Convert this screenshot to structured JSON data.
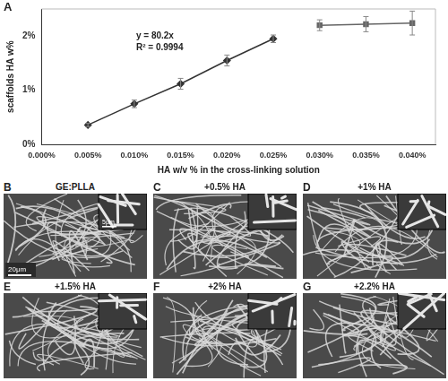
{
  "chart_data": {
    "type": "line",
    "panel_label": "A",
    "x_label": "HA w/v % in the cross-linking solution",
    "y_label": "scaffolds HA w%",
    "annotations": [
      "y = 80.2x",
      "R² = 0.9994"
    ],
    "x": [
      0.005,
      0.01,
      0.015,
      0.02,
      0.025,
      0.03,
      0.035,
      0.04
    ],
    "series": [
      {
        "values": [
          0.36,
          0.75,
          1.12,
          1.55,
          1.95,
          null,
          null,
          null
        ],
        "errors": [
          0.03,
          0.07,
          0.1,
          0.1,
          0.07,
          null,
          null,
          null
        ],
        "color": "#333333",
        "marker": "diamond",
        "line_style": "solid"
      },
      {
        "values": [
          null,
          null,
          null,
          null,
          null,
          2.2,
          2.22,
          2.24
        ],
        "errors": [
          null,
          null,
          null,
          null,
          null,
          0.1,
          0.14,
          0.22
        ],
        "color": "#666666",
        "marker": "square",
        "line_style": "solid"
      }
    ],
    "xlim": [
      0,
      0.0425
    ],
    "xticks": [
      {
        "value": 0,
        "label": "0.000%"
      },
      {
        "value": 0.005,
        "label": "0.005%"
      },
      {
        "value": 0.01,
        "label": "0.010%"
      },
      {
        "value": 0.015,
        "label": "0.015%"
      },
      {
        "value": 0.02,
        "label": "0.020%"
      },
      {
        "value": 0.025,
        "label": "0.025%"
      },
      {
        "value": 0.03,
        "label": "0.030%"
      },
      {
        "value": 0.035,
        "label": "0.035%"
      },
      {
        "value": 0.04,
        "label": "0.040%"
      }
    ],
    "ylim": [
      0,
      2.5
    ],
    "yticks": [
      {
        "value": 0,
        "label": "0%"
      },
      {
        "value": 1,
        "label": "1%"
      },
      {
        "value": 2,
        "label": "2%"
      }
    ],
    "grid": false
  },
  "panels": [
    {
      "label": "B",
      "title": "GE:PLLA",
      "scale_bar": "20μm",
      "inset_scale_bar": "5μm"
    },
    {
      "label": "C",
      "title": "+0.5% HA"
    },
    {
      "label": "D",
      "title": "+1% HA"
    },
    {
      "label": "E",
      "title": "+1.5% HA"
    },
    {
      "label": "F",
      "title": "+2% HA"
    },
    {
      "label": "G",
      "title": "+2.2% HA"
    }
  ]
}
